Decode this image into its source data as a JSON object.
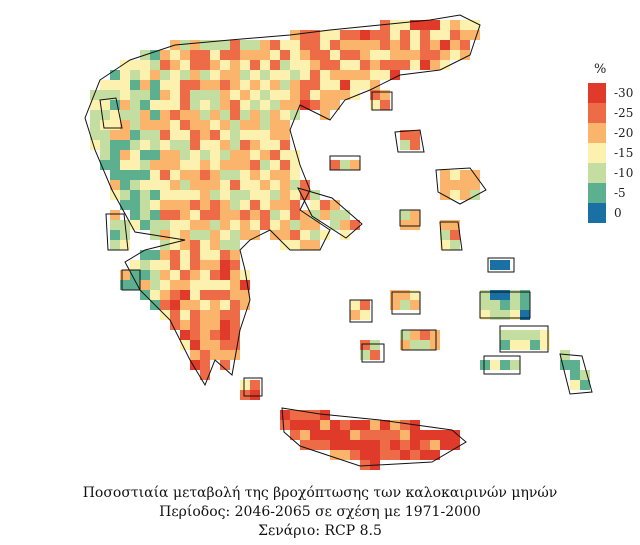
{
  "legend": {
    "title": "%",
    "items": [
      {
        "label": "-30",
        "color": "#e03a2b"
      },
      {
        "label": "-25",
        "color": "#ee6b47"
      },
      {
        "label": "-20",
        "color": "#fbb46b"
      },
      {
        "label": "-15",
        "color": "#fdf1b0"
      },
      {
        "label": "-10",
        "color": "#c4dea2"
      },
      {
        "label": "-5",
        "color": "#5cb08f"
      },
      {
        "label": "0",
        "color": "#1a70a3"
      }
    ]
  },
  "caption": {
    "line1": "Ποσοστιαία μεταβολή της βροχόπτωσης των καλοκαιρινών μηνών",
    "line2": "Περίοδος: 2046-2065 σε σχέση με 1971-2000",
    "line3": "Σενάριο: RCP 8.5"
  }
}
